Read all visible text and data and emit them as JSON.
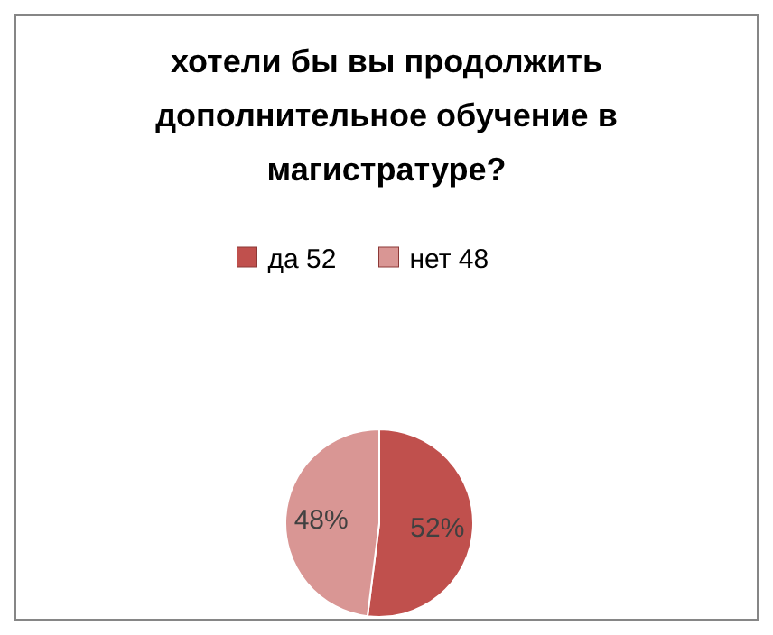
{
  "chart_data": {
    "type": "pie",
    "title": "хотели бы вы продолжить дополнительное обучение в магистратуре?",
    "categories": [
      "да 52",
      "нет 48"
    ],
    "values": [
      52,
      48
    ],
    "colors": [
      "#c0504d",
      "#d99694"
    ],
    "value_labels": [
      "52%",
      "48%"
    ],
    "legend": "top"
  }
}
